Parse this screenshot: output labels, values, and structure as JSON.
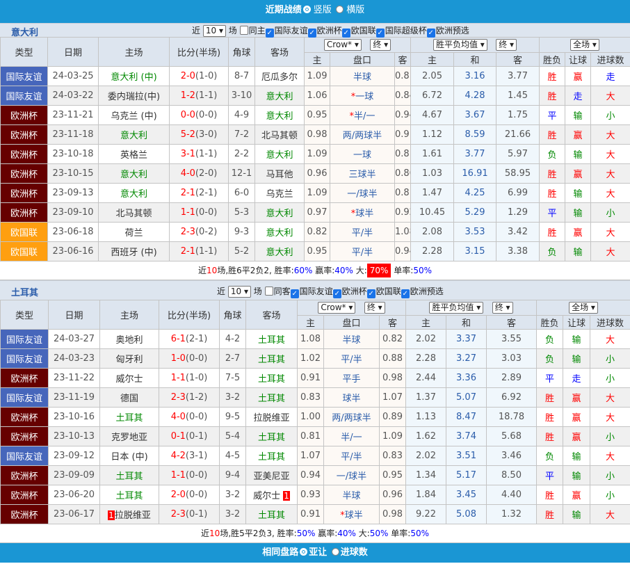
{
  "top": {
    "title": "近期战绩",
    "opt1": "竖版",
    "opt2": "横版"
  },
  "colors": {
    "国际友谊": "#4666bb",
    "欧洲杯": "#660000",
    "欧国联": "#ff9f10",
    "accent": "#1a96d4"
  },
  "headers": {
    "type": "类型",
    "date": "日期",
    "home": "主场",
    "score": "比分(半场)",
    "corner": "角球",
    "away": "客场",
    "company": "Crow*",
    "term": "终",
    "avg": "胜平负均值",
    "period": "全场",
    "h": "主",
    "line": "盘口",
    "a": "客",
    "h2": "主",
    "d": "和",
    "a2": "客",
    "wl": "胜负",
    "hc": "让球",
    "ou": "进球数"
  },
  "sections": [
    {
      "team": "意大利",
      "near": "近",
      "count": "10",
      "unit": "场",
      "same": "同主",
      "filters": [
        "国际友谊",
        "欧洲杯",
        "欧国联",
        "国际超级杯",
        "欧洲预选"
      ],
      "rows": [
        [
          "国际友谊",
          "24-03-25",
          "意大利 (中)",
          "2-0",
          "(1-0)",
          "8-7",
          "厄瓜多尔",
          "1.09",
          "半球",
          "0.81",
          "2.05",
          "3.16",
          "3.77",
          "胜",
          "赢",
          "走"
        ],
        [
          "国际友谊",
          "24-03-22",
          "委内瑞拉(中)",
          "1-2",
          "(1-1)",
          "3-10",
          "意大利",
          "1.06",
          "*一球",
          "0.84",
          "6.72",
          "4.28",
          "1.45",
          "胜",
          "走",
          "大"
        ],
        [
          "欧洲杯",
          "23-11-21",
          "乌克兰 (中)",
          "0-0",
          "(0-0)",
          "4-9",
          "意大利",
          "0.95",
          "*半/一",
          "0.94",
          "4.67",
          "3.67",
          "1.75",
          "平",
          "输",
          "小"
        ],
        [
          "欧洲杯",
          "23-11-18",
          "意大利",
          "5-2",
          "(3-0)",
          "7-2",
          "北马其顿",
          "0.98",
          "两/两球半",
          "0.91",
          "1.12",
          "8.59",
          "21.66",
          "胜",
          "赢",
          "大"
        ],
        [
          "欧洲杯",
          "23-10-18",
          "英格兰",
          "3-1",
          "(1-1)",
          "2-2",
          "意大利",
          "1.09",
          "一球",
          "0.81",
          "1.61",
          "3.77",
          "5.97",
          "负",
          "输",
          "大"
        ],
        [
          "欧洲杯",
          "23-10-15",
          "意大利",
          "4-0",
          "(2-0)",
          "12-1",
          "马耳他",
          "0.96",
          "三球半",
          "0.86",
          "1.03",
          "16.91",
          "58.95",
          "胜",
          "赢",
          "大"
        ],
        [
          "欧洲杯",
          "23-09-13",
          "意大利",
          "2-1",
          "(2-1)",
          "6-0",
          "乌克兰",
          "1.09",
          "一/球半",
          "0.81",
          "1.47",
          "4.25",
          "6.99",
          "胜",
          "输",
          "大"
        ],
        [
          "欧洲杯",
          "23-09-10",
          "北马其顿",
          "1-1",
          "(0-0)",
          "5-3",
          "意大利",
          "0.97",
          "*球半",
          "0.92",
          "10.45",
          "5.29",
          "1.29",
          "平",
          "输",
          "小"
        ],
        [
          "欧国联",
          "23-06-18",
          "荷兰",
          "2-3",
          "(0-2)",
          "9-3",
          "意大利",
          "0.82",
          "平/半",
          "1.08",
          "2.08",
          "3.53",
          "3.42",
          "胜",
          "赢",
          "大"
        ],
        [
          "欧国联",
          "23-06-16",
          "西班牙 (中)",
          "2-1",
          "(1-1)",
          "5-2",
          "意大利",
          "0.95",
          "平/半",
          "0.94",
          "2.28",
          "3.15",
          "3.38",
          "负",
          "输",
          "大"
        ]
      ],
      "summary": {
        "a": "近",
        "n": "10",
        "b": "场,胜6平2负2, 胜率:",
        "win": "60%",
        "c": " 赢率:",
        "hc": "40%",
        "d": " 大:",
        "big": "70%",
        "e": " 单率:",
        "odd": "50%"
      }
    },
    {
      "team": "土耳其",
      "near": "近",
      "count": "10",
      "unit": "场",
      "same": "同客",
      "filters": [
        "国际友谊",
        "欧洲杯",
        "欧国联",
        "欧洲预选"
      ],
      "rows": [
        [
          "国际友谊",
          "24-03-27",
          "奥地利",
          "6-1",
          "(2-1)",
          "4-2",
          "土耳其",
          "1.08",
          "半球",
          "0.82",
          "2.02",
          "3.37",
          "3.55",
          "负",
          "输",
          "大"
        ],
        [
          "国际友谊",
          "24-03-23",
          "匈牙利",
          "1-0",
          "(0-0)",
          "2-7",
          "土耳其",
          "1.02",
          "平/半",
          "0.88",
          "2.28",
          "3.27",
          "3.03",
          "负",
          "输",
          "小"
        ],
        [
          "欧洲杯",
          "23-11-22",
          "威尔士",
          "1-1",
          "(1-0)",
          "7-5",
          "土耳其",
          "0.91",
          "平手",
          "0.98",
          "2.44",
          "3.36",
          "2.89",
          "平",
          "走",
          "小"
        ],
        [
          "国际友谊",
          "23-11-19",
          "德国",
          "2-3",
          "(1-2)",
          "3-2",
          "土耳其",
          "0.83",
          "球半",
          "1.07",
          "1.37",
          "5.07",
          "6.92",
          "胜",
          "赢",
          "大"
        ],
        [
          "欧洲杯",
          "23-10-16",
          "土耳其",
          "4-0",
          "(0-0)",
          "9-5",
          "拉脱维亚",
          "1.00",
          "两/两球半",
          "0.89",
          "1.13",
          "8.47",
          "18.78",
          "胜",
          "赢",
          "大"
        ],
        [
          "欧洲杯",
          "23-10-13",
          "克罗地亚",
          "0-1",
          "(0-1)",
          "5-4",
          "土耳其",
          "0.81",
          "半/一",
          "1.09",
          "1.62",
          "3.74",
          "5.68",
          "胜",
          "赢",
          "小"
        ],
        [
          "国际友谊",
          "23-09-12",
          "日本 (中)",
          "4-2",
          "(3-1)",
          "4-5",
          "土耳其",
          "1.07",
          "平/半",
          "0.83",
          "2.02",
          "3.51",
          "3.46",
          "负",
          "输",
          "大"
        ],
        [
          "欧洲杯",
          "23-09-09",
          "土耳其",
          "1-1",
          "(0-0)",
          "9-4",
          "亚美尼亚",
          "0.94",
          "一/球半",
          "0.95",
          "1.34",
          "5.17",
          "8.50",
          "平",
          "输",
          "小"
        ],
        [
          "欧洲杯",
          "23-06-20",
          "土耳其",
          "2-0",
          "(0-0)",
          "3-2",
          "威尔士",
          "0.93",
          "半球",
          "0.96",
          "1.84",
          "3.45",
          "4.40",
          "胜",
          "赢",
          "小"
        ],
        [
          "欧洲杯",
          "23-06-17",
          "拉脱维亚",
          "2-3",
          "(0-1)",
          "3-2",
          "土耳其",
          "0.91",
          "*球半",
          "0.98",
          "9.22",
          "5.08",
          "1.32",
          "胜",
          "输",
          "大"
        ]
      ],
      "cards": {
        "8": {
          "away": "1"
        },
        "9": {
          "home": "1"
        }
      },
      "summary": {
        "a": "近",
        "n": "10",
        "b": "场,胜5平2负3, 胜率:",
        "win": "50%",
        "c": " 赢率:",
        "hc": "40%",
        "d": " 大:",
        "big": "50%",
        "e": " 单率:",
        "odd": "50%"
      }
    }
  ],
  "bottom": {
    "title": "相同盘路",
    "opt1": "亚让",
    "opt2": "进球数"
  }
}
